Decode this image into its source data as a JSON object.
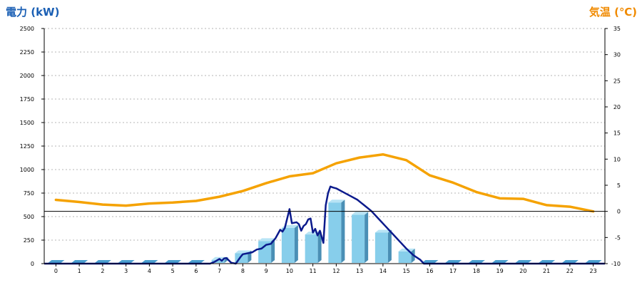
{
  "chart_data": {
    "type": "bar",
    "grid": true,
    "legend": "none",
    "left_axis": {
      "title": "電力 (kW)",
      "ylim": [
        0,
        2500
      ],
      "ticks": [
        0,
        250,
        500,
        750,
        1000,
        1250,
        1500,
        1750,
        2000,
        2250,
        2500
      ],
      "color": "#1a5fb4"
    },
    "right_axis": {
      "title": "気温 (℃)",
      "ylim": [
        -10,
        35
      ],
      "ticks": [
        -10,
        -5,
        0,
        5,
        10,
        15,
        20,
        25,
        30,
        35
      ],
      "color": "#f08a00"
    },
    "x_ticks": [
      "0",
      "1",
      "2",
      "3",
      "4",
      "5",
      "6",
      "7",
      "8",
      "9",
      "10",
      "11",
      "12",
      "13",
      "14",
      "15",
      "16",
      "17",
      "18",
      "19",
      "20",
      "21",
      "22",
      "23"
    ],
    "bar_series": {
      "axis": "left",
      "color": "#87ceeb",
      "categories": [
        0,
        1,
        2,
        3,
        4,
        5,
        6,
        7,
        8,
        9,
        10,
        11,
        12,
        13,
        14,
        15,
        16,
        17,
        18,
        19,
        20,
        21,
        22,
        23
      ],
      "values": [
        0,
        0,
        0,
        0,
        0,
        0,
        0,
        40,
        110,
        240,
        380,
        310,
        650,
        520,
        330,
        130,
        0,
        0,
        0,
        0,
        0,
        0,
        0,
        0
      ]
    },
    "power_line": {
      "axis": "left",
      "color": "#0b1a8c",
      "x": [
        0,
        6.6,
        6.8,
        7.0,
        7.1,
        7.2,
        7.3,
        7.5,
        7.7,
        7.9,
        8.0,
        8.2,
        8.4,
        8.6,
        8.8,
        9.0,
        9.2,
        9.4,
        9.6,
        9.7,
        9.8,
        10.0,
        10.1,
        10.3,
        10.4,
        10.5,
        10.6,
        10.7,
        10.8,
        10.9,
        11.0,
        11.1,
        11.2,
        11.3,
        11.45,
        11.55,
        11.65,
        11.75,
        11.85,
        12.0,
        12.3,
        12.6,
        12.9,
        13.2,
        13.5,
        13.8,
        14.1,
        14.4,
        14.7,
        15.0,
        15.3,
        15.6,
        15.75,
        24
      ],
      "y": [
        0,
        0,
        20,
        50,
        30,
        55,
        60,
        10,
        0,
        70,
        100,
        110,
        120,
        150,
        160,
        200,
        210,
        270,
        360,
        340,
        380,
        580,
        430,
        440,
        420,
        350,
        400,
        420,
        470,
        480,
        330,
        370,
        300,
        350,
        220,
        620,
        750,
        820,
        810,
        800,
        760,
        720,
        680,
        620,
        560,
        480,
        400,
        320,
        240,
        160,
        90,
        40,
        0,
        0
      ]
    },
    "temperature": {
      "axis": "right",
      "color": "#f5a200",
      "x": [
        0,
        1,
        2,
        3,
        4,
        5,
        6,
        7,
        8,
        9,
        10,
        11,
        12,
        13,
        14,
        15,
        16,
        17,
        18,
        19,
        20,
        21,
        22,
        23
      ],
      "y": [
        2.2,
        1.8,
        1.3,
        1.1,
        1.5,
        1.7,
        2.0,
        2.8,
        3.9,
        5.4,
        6.7,
        7.3,
        9.2,
        10.3,
        10.9,
        9.8,
        6.9,
        5.5,
        3.7,
        2.5,
        2.4,
        1.2,
        0.9,
        0.0
      ]
    }
  }
}
